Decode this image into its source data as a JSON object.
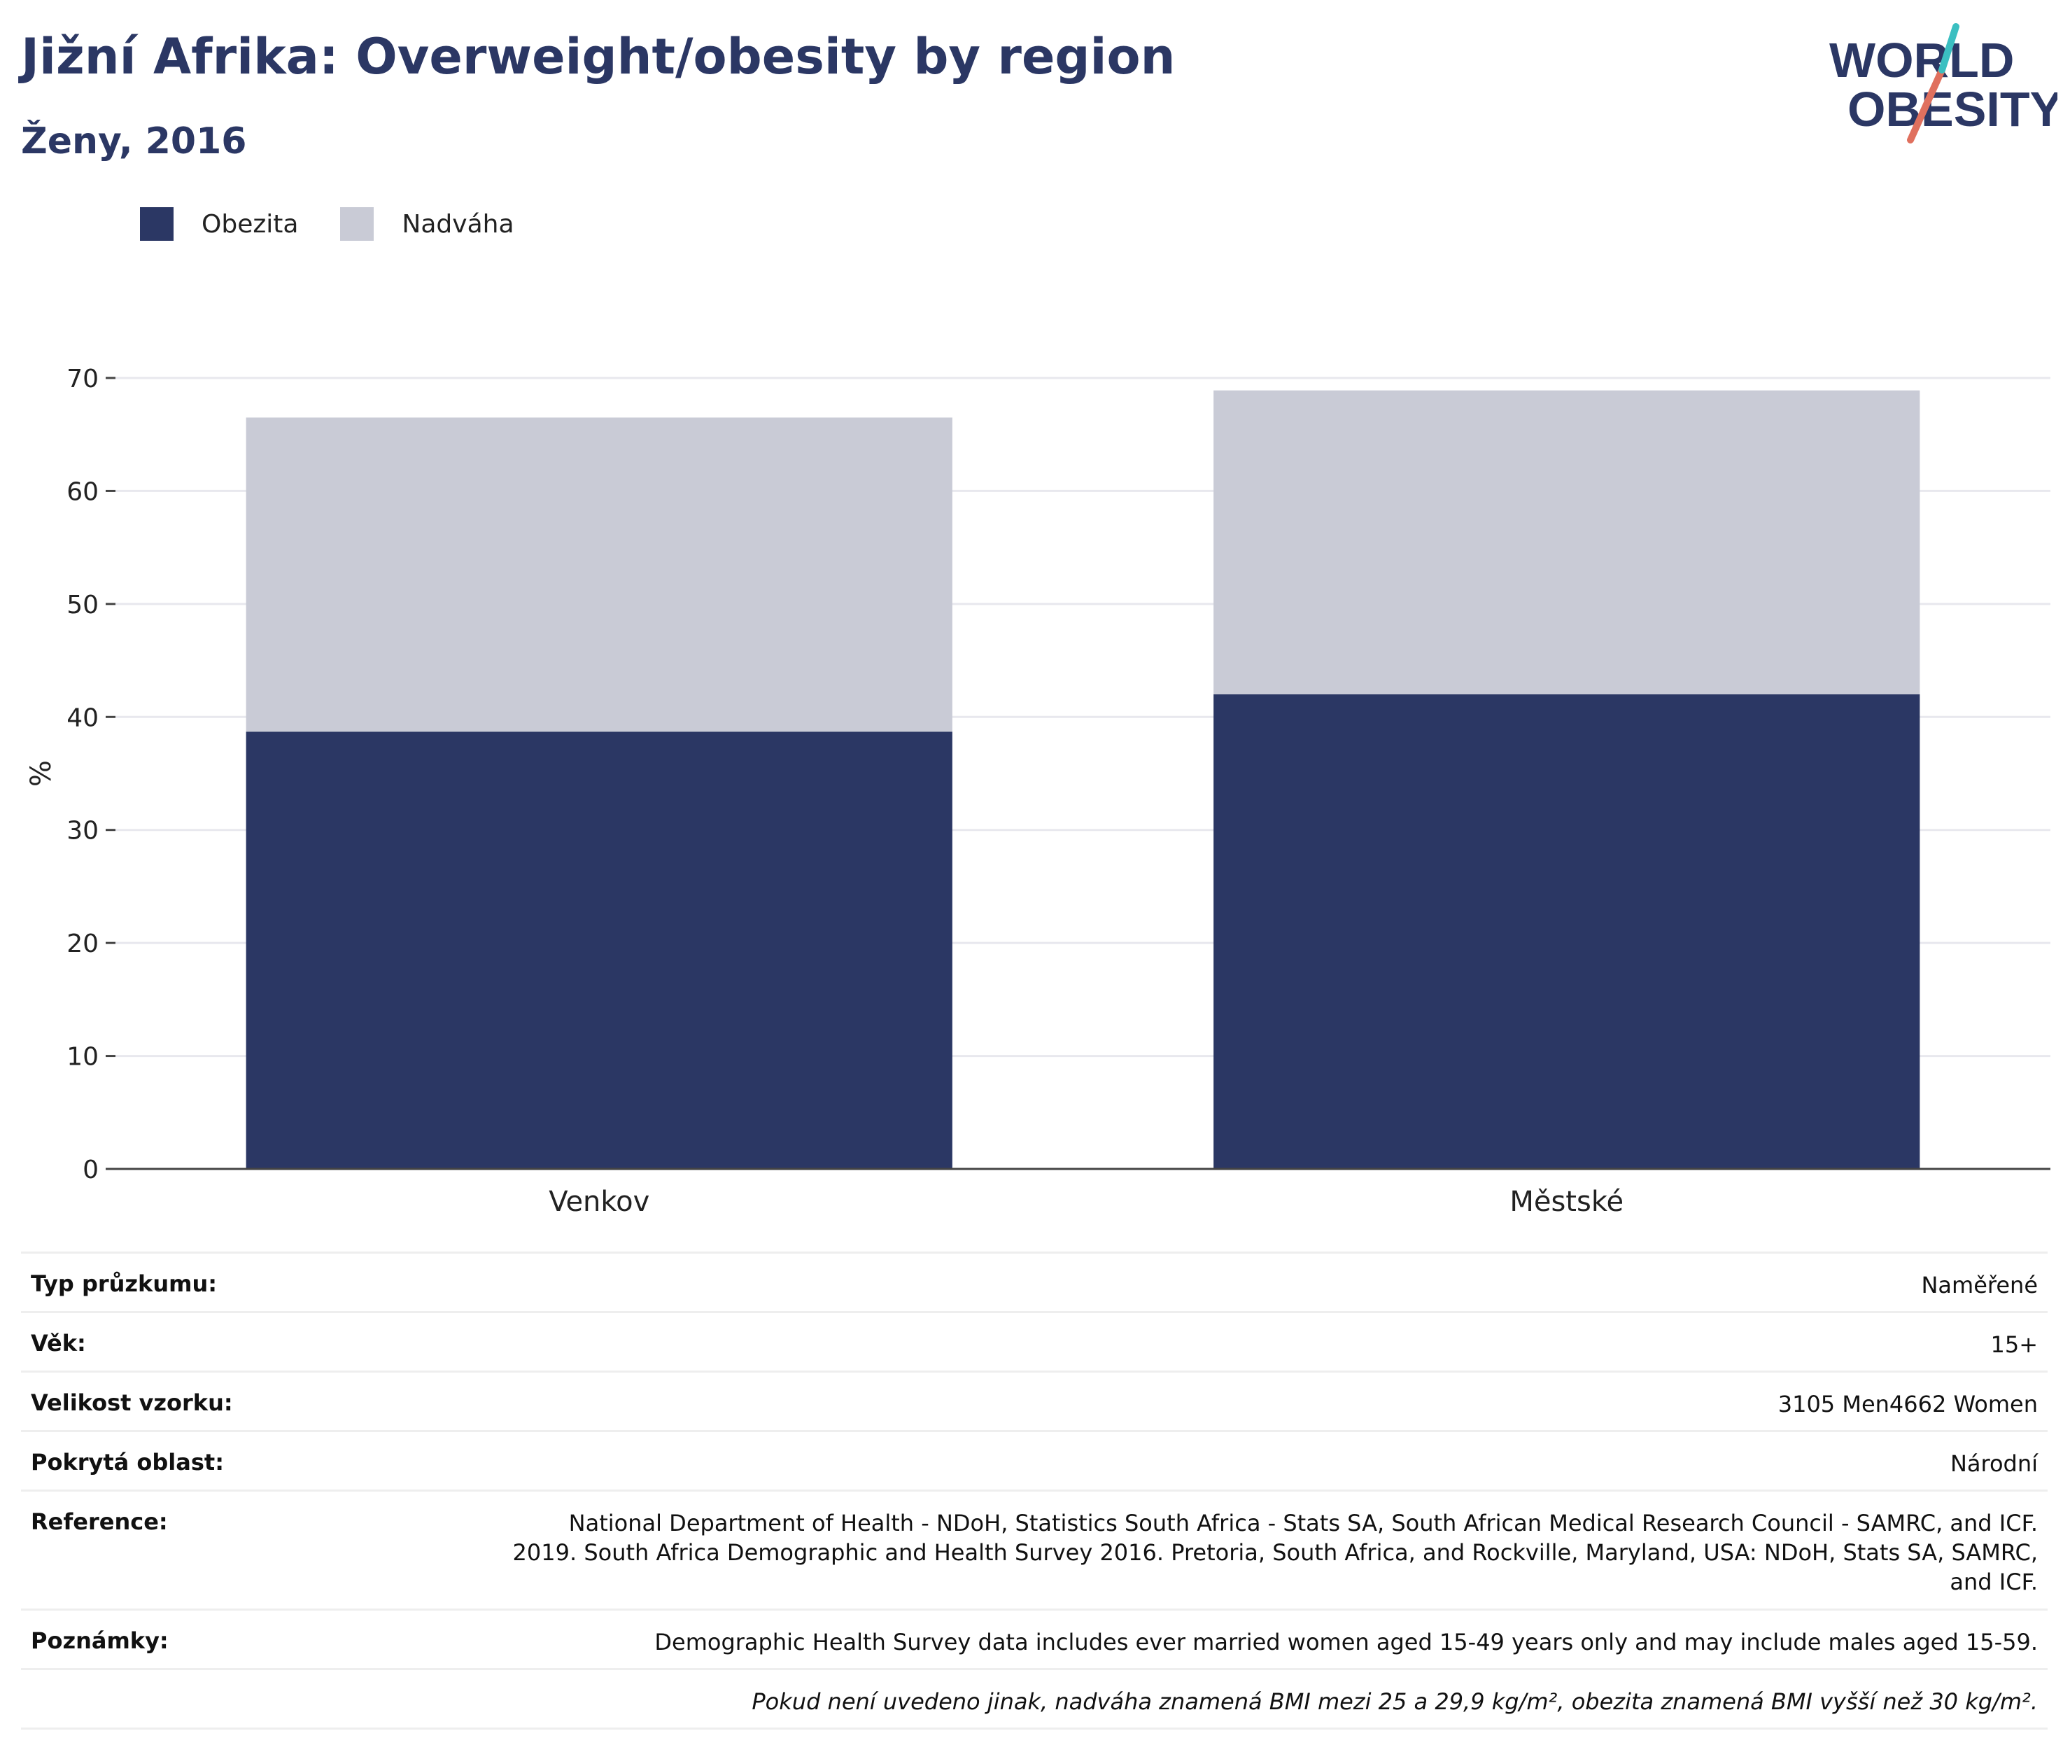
{
  "header": {
    "title": "Jižní Afrika: Overweight/obesity by region",
    "subtitle": "Ženy, 2016"
  },
  "logo": {
    "line1": "WORLD",
    "line2": "OBESITY"
  },
  "legend": [
    {
      "label": "Obezita",
      "color": "#2b3764"
    },
    {
      "label": "Nadváha",
      "color": "#c9cbd6"
    }
  ],
  "chart_data": {
    "type": "bar",
    "stacked": true,
    "categories": [
      "Venkov",
      "Městské"
    ],
    "series": [
      {
        "name": "Obezita",
        "values": [
          38.7,
          42.0
        ],
        "color": "#2b3764"
      },
      {
        "name": "Nadváha",
        "values": [
          27.8,
          26.9
        ],
        "color": "#c9cbd6"
      }
    ],
    "ylabel": "%",
    "ylim": [
      0,
      70
    ],
    "yticks": [
      "0",
      "10",
      "20",
      "30",
      "40",
      "50",
      "60",
      "70"
    ],
    "grid": true,
    "legend_position": "top-left"
  },
  "info": {
    "rows": [
      {
        "key": "Typ průzkumu:",
        "value": "Naměřené"
      },
      {
        "key": "Věk:",
        "value": "15+"
      },
      {
        "key": "Velikost vzorku:",
        "value": "3105 Men4662 Women"
      },
      {
        "key": "Pokrytá oblast:",
        "value": "Národní"
      },
      {
        "key": "Reference:",
        "value": "National Department of Health - NDoH, Statistics South Africa - Stats SA, South African Medical Research Council - SAMRC, and ICF. 2019. South Africa Demographic and Health Survey 2016. Pretoria, South Africa, and Rockville, Maryland, USA: NDoH, Stats SA, SAMRC, and ICF."
      },
      {
        "key": "Poznámky:",
        "value": "Demographic Health Survey data includes ever married women aged 15-49 years only and may include males aged 15-59."
      }
    ],
    "footnote": "Pokud není uvedeno jinak, nadváha znamená BMI mezi 25 a 29,9 kg/m², obezita znamená BMI vyšší než 30 kg/m²."
  }
}
